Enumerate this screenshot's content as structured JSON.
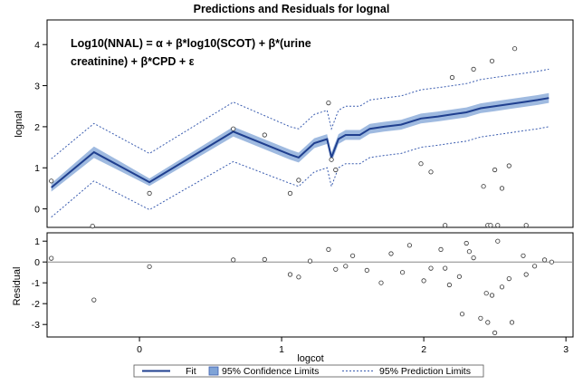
{
  "chart_data": {
    "type": "line",
    "title": "Predictions and Residuals for lognal",
    "annotation": [
      "Log10(NNAL) = α + β*log10(SCOT) + β*(urine",
      "creatinine) + β*CPD + ε"
    ],
    "xlabel": "logcot",
    "x_ticks": [
      "0",
      "1",
      "2",
      "3"
    ],
    "xlim": [
      -0.65,
      3.05
    ],
    "panels": [
      {
        "name": "predictions",
        "ylabel": "lognal",
        "ylim": [
          -0.45,
          4.6
        ],
        "y_ticks": [
          "0",
          "1",
          "2",
          "3",
          "4"
        ],
        "series": [
          {
            "name": "Fit",
            "type": "line",
            "color": "#1f3f8f",
            "x": [
              -0.62,
              -0.32,
              0.07,
              0.66,
              1.06,
              1.12,
              1.23,
              1.32,
              1.35,
              1.4,
              1.45,
              1.55,
              1.62,
              1.72,
              1.84,
              1.98,
              2.1,
              2.2,
              2.3,
              2.4,
              2.5,
              2.6,
              2.7,
              2.8,
              2.88
            ],
            "y": [
              0.52,
              1.38,
              0.65,
              1.88,
              1.32,
              1.25,
              1.6,
              1.7,
              1.25,
              1.7,
              1.8,
              1.8,
              1.95,
              2.0,
              2.05,
              2.2,
              2.25,
              2.3,
              2.35,
              2.45,
              2.5,
              2.55,
              2.6,
              2.65,
              2.7
            ]
          },
          {
            "name": "95% Confidence Limits",
            "type": "band",
            "color": "#7fa3d6",
            "x": [
              -0.62,
              -0.32,
              0.07,
              0.66,
              1.06,
              1.12,
              1.23,
              1.32,
              1.35,
              1.4,
              1.45,
              1.55,
              1.62,
              1.72,
              1.84,
              1.98,
              2.1,
              2.2,
              2.3,
              2.4,
              2.5,
              2.6,
              2.7,
              2.8,
              2.88
            ],
            "lower": [
              0.42,
              1.24,
              0.56,
              1.76,
              1.2,
              1.13,
              1.48,
              1.58,
              1.13,
              1.58,
              1.68,
              1.68,
              1.83,
              1.88,
              1.93,
              2.08,
              2.13,
              2.18,
              2.23,
              2.33,
              2.38,
              2.43,
              2.48,
              2.53,
              2.58
            ],
            "upper": [
              0.62,
              1.52,
              0.74,
              2.0,
              1.44,
              1.37,
              1.72,
              1.82,
              1.37,
              1.82,
              1.92,
              1.92,
              2.07,
              2.12,
              2.17,
              2.32,
              2.37,
              2.42,
              2.47,
              2.57,
              2.62,
              2.67,
              2.72,
              2.77,
              2.82
            ]
          },
          {
            "name": "95% Prediction Limits",
            "type": "dashed",
            "color": "#3b5db0",
            "x": [
              -0.62,
              -0.32,
              0.07,
              0.66,
              1.06,
              1.12,
              1.23,
              1.32,
              1.35,
              1.4,
              1.45,
              1.55,
              1.62,
              1.72,
              1.84,
              1.98,
              2.1,
              2.2,
              2.3,
              2.4,
              2.5,
              2.6,
              2.7,
              2.8,
              2.88
            ],
            "lower": [
              -0.2,
              0.68,
              -0.02,
              1.15,
              0.62,
              0.55,
              0.9,
              1.0,
              0.55,
              1.0,
              1.1,
              1.1,
              1.25,
              1.3,
              1.35,
              1.5,
              1.55,
              1.6,
              1.65,
              1.75,
              1.8,
              1.85,
              1.9,
              1.95,
              2.0
            ],
            "upper": [
              1.22,
              2.08,
              1.35,
              2.6,
              2.0,
              1.95,
              2.3,
              2.4,
              1.95,
              2.4,
              2.5,
              2.5,
              2.65,
              2.7,
              2.75,
              2.9,
              2.95,
              3.0,
              3.05,
              3.15,
              3.2,
              3.25,
              3.3,
              3.35,
              3.4
            ]
          },
          {
            "name": "observations",
            "type": "scatter",
            "x": [
              -0.62,
              -0.33,
              0.07,
              0.66,
              0.88,
              1.06,
              1.12,
              1.33,
              1.35,
              1.38,
              1.98,
              2.15,
              2.45,
              2.47,
              2.52,
              2.55,
              2.72,
              2.6,
              2.5,
              2.42,
              2.48,
              2.64,
              2.35,
              2.2,
              2.05
            ],
            "y": [
              0.68,
              -0.42,
              0.38,
              1.95,
              1.8,
              0.38,
              0.7,
              2.58,
              1.2,
              0.95,
              1.1,
              -0.4,
              -0.4,
              -0.4,
              -0.4,
              0.5,
              -0.4,
              1.05,
              0.95,
              0.55,
              3.6,
              3.9,
              3.4,
              3.2,
              0.9
            ]
          }
        ]
      },
      {
        "name": "residuals",
        "ylabel": "Residual",
        "ylim": [
          -3.6,
          1.4
        ],
        "y_ticks": [
          "1",
          "0",
          "-1",
          "-2",
          "-3"
        ],
        "reference_line": 0,
        "series": [
          {
            "name": "residuals",
            "type": "scatter",
            "x": [
              -0.62,
              -0.32,
              0.07,
              0.66,
              0.88,
              1.06,
              1.12,
              1.2,
              1.33,
              1.38,
              1.45,
              1.5,
              1.6,
              1.7,
              1.77,
              1.85,
              1.9,
              2.0,
              2.05,
              2.12,
              2.18,
              2.25,
              2.32,
              2.4,
              2.45,
              2.5,
              2.55,
              2.62,
              2.72,
              2.44,
              2.48,
              2.27,
              2.52,
              2.3,
              2.6,
              2.35,
              2.15,
              2.7,
              2.78,
              2.85,
              2.9
            ],
            "y": [
              0.18,
              -1.82,
              -0.22,
              0.1,
              0.12,
              -0.6,
              -0.72,
              0.05,
              0.6,
              -0.35,
              -0.2,
              0.3,
              -0.4,
              -1.0,
              0.4,
              -0.5,
              0.8,
              -0.9,
              -0.3,
              0.6,
              -1.1,
              -0.7,
              0.5,
              -2.7,
              -2.9,
              -3.4,
              -1.2,
              -2.9,
              -0.6,
              -1.5,
              -1.6,
              -2.5,
              1.0,
              0.9,
              -0.8,
              0.2,
              -0.3,
              0.3,
              -0.2,
              0.1,
              0.0
            ]
          }
        ]
      }
    ],
    "legend": {
      "placement": "bottom",
      "items": [
        "Fit",
        "95% Confidence Limits",
        "95% Prediction Limits"
      ]
    }
  }
}
